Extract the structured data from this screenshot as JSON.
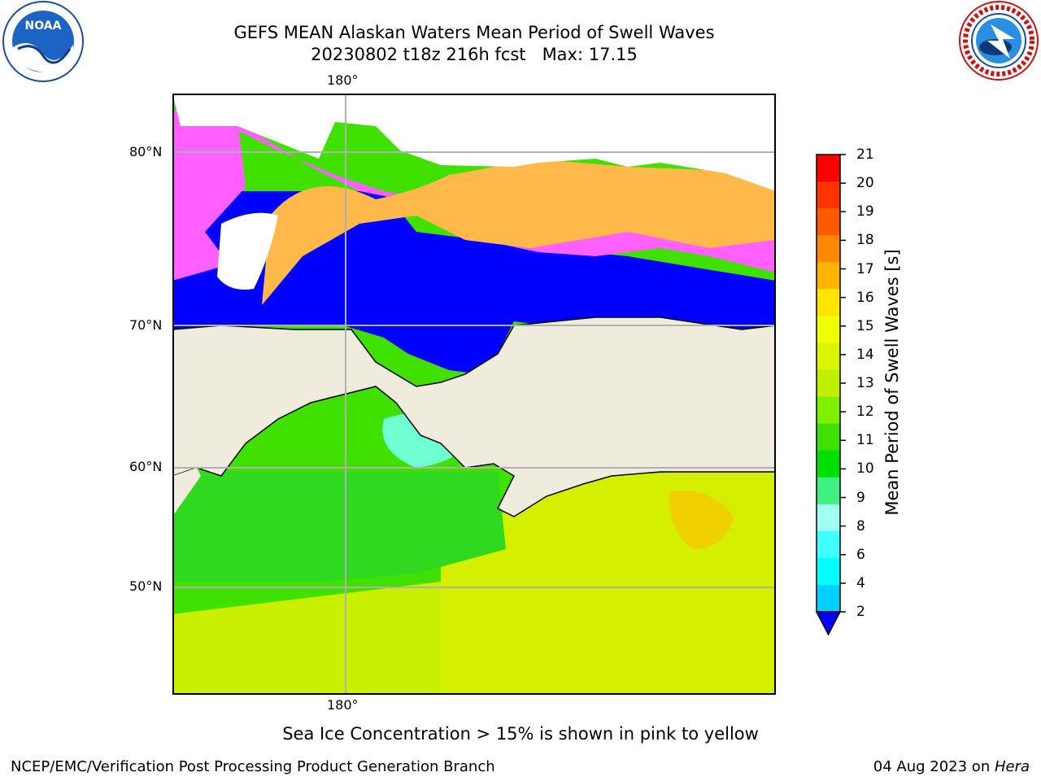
{
  "title_line1": "GEFS MEAN Alaskan Waters Mean Period of Swell Waves",
  "title_line2": "20230802 t18z 216h fcst   Max: 17.15",
  "lon_label_top": "180°",
  "lon_label_bottom": "180°",
  "lat_labels": [
    "80°N",
    "70°N",
    "60°N",
    "50°N"
  ],
  "colorbar": {
    "label": "Mean Period of Swell Waves [s]",
    "ticks": [
      "21",
      "20",
      "19",
      "18",
      "17",
      "16",
      "15",
      "14",
      "13",
      "12",
      "11",
      "10",
      "9",
      "8",
      "6",
      "4",
      "2"
    ],
    "colors": [
      "#ff0000",
      "#ff3300",
      "#ff5a00",
      "#ff8800",
      "#ffb400",
      "#ffe600",
      "#f0ff00",
      "#d9f500",
      "#c0f000",
      "#80f000",
      "#40e000",
      "#00e000",
      "#40f080",
      "#a0fff0",
      "#40ffff",
      "#00ffff",
      "#00d0ff",
      "#0070ff"
    ],
    "extend_color": "#0000ff"
  },
  "note": "Sea Ice Concentration > 15% is shown in pink to yellow",
  "footer_left": "NCEP/EMC/Verification Post Processing Product Generation Branch",
  "footer_right_date": "04 Aug 2023 on ",
  "footer_right_host": "Hera",
  "colors": {
    "land": "#efecdd",
    "ice_pink": "#ff60ff",
    "ice_orange": "#ffb84a",
    "open_blue": "#0000ff",
    "swell_green": "#40e000",
    "swell_yellow": "#d9f000",
    "grid": "#b0b0b0"
  },
  "logos": {
    "left": "NOAA",
    "right": "NATIONAL WEATHER SERVICE"
  }
}
